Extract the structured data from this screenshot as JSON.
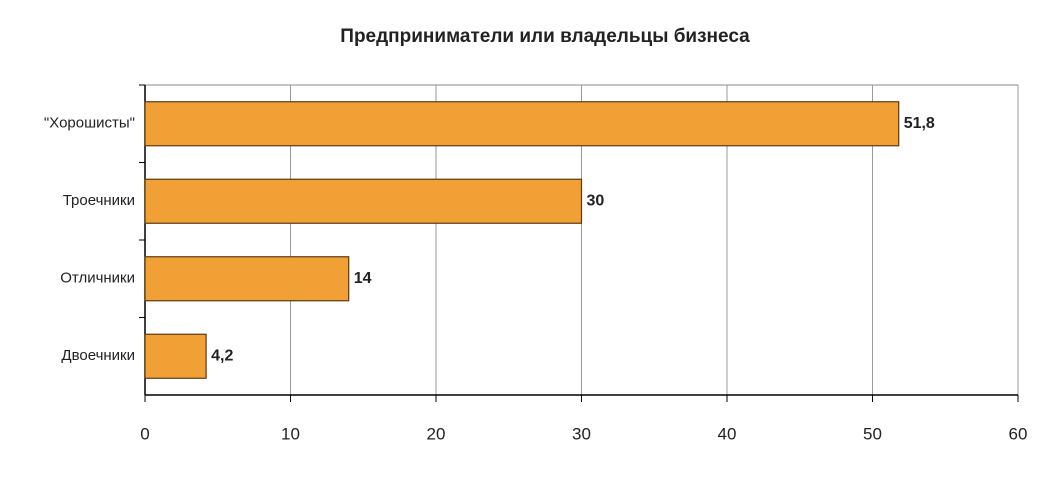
{
  "chart_data": {
    "type": "bar",
    "horizontal": true,
    "title": "Предприниматели или владельцы бизнеса",
    "categories": [
      "\"Хорошисты\"",
      "Троечники",
      "Отличники",
      "Двоечники"
    ],
    "values": [
      51.8,
      30,
      14,
      4.2
    ],
    "value_labels": [
      "51,8",
      "30",
      "14",
      "4,2"
    ],
    "color": "#f0a035",
    "xlim": [
      0,
      60
    ],
    "xticks": [
      0,
      10,
      20,
      30,
      40,
      50,
      60
    ],
    "grid": true
  }
}
